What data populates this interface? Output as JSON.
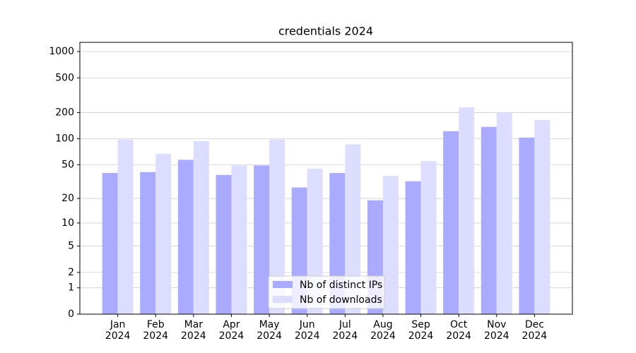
{
  "chart_data": {
    "type": "bar",
    "title": "credentials 2024",
    "categories": [
      "Jan\n2024",
      "Feb\n2024",
      "Mar\n2024",
      "Apr\n2024",
      "May\n2024",
      "Jun\n2024",
      "Jul\n2024",
      "Aug\n2024",
      "Sep\n2024",
      "Oct\n2024",
      "Nov\n2024",
      "Dec\n2024"
    ],
    "series": [
      {
        "name": "Nb of distinct IPs",
        "color": "#aaaaff",
        "values": [
          40,
          41,
          57,
          38,
          49,
          27,
          40,
          19,
          32,
          122,
          137,
          103
        ]
      },
      {
        "name": "Nb of downloads",
        "color": "#ddddff",
        "values": [
          98,
          67,
          94,
          49,
          98,
          45,
          86,
          37,
          55,
          230,
          200,
          164
        ]
      }
    ],
    "yscale": "log1p",
    "ylim": [
      0,
      1273
    ],
    "yticks": [
      0,
      1,
      2,
      5,
      10,
      20,
      50,
      100,
      200,
      500,
      1000
    ],
    "grid": true,
    "legend": "lower center"
  }
}
